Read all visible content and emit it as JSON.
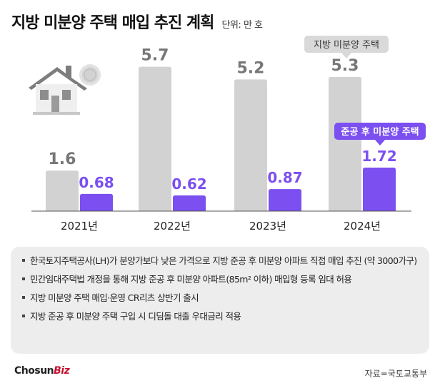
{
  "header": {
    "title": "지방 미분양 주택 매입 추진 계획",
    "unit": "단위: 만 호"
  },
  "chart_data": {
    "type": "bar",
    "title": "지방 미분양 주택 매입 추진 계획",
    "unit": "단위: 만 호",
    "categories": [
      "2021년",
      "2022년",
      "2023년",
      "2024년"
    ],
    "series": [
      {
        "name": "지방 미분양 주택",
        "color": "#d2d2d2",
        "label_color": "#777777",
        "values": [
          1.6,
          5.7,
          5.2,
          5.3
        ]
      },
      {
        "name": "준공 후 미분양 주택",
        "color": "#7b4ff0",
        "label_color": "#7b4ff0",
        "values": [
          0.68,
          0.62,
          0.87,
          1.72
        ]
      }
    ],
    "legend": {
      "placement": "top-right"
    },
    "ylim": [
      0,
      6
    ],
    "grid": false
  },
  "icons": {
    "house": "house-icon"
  },
  "notes": [
    "한국토지주택공사(LH)가 분양가보다 낮은 가격으로 지방 준공 후 미분양 아파트 직접 매입 추진 (약 3000가구)",
    "민간임대주택법 개정을 통해 지방 준공 후 미분양 아파트(85m² 이하) 매입형 등록 임대 허용",
    "지방 미분양 주택 매입·운영 CR리츠 상반기 출시",
    "지방 준공 후 미분양 주택 구입 시 디딤돌 대출 우대금리 적용"
  ],
  "footer": {
    "logo_main": "Chosun",
    "logo_biz": "Biz",
    "source": "자료=국토교통부"
  }
}
